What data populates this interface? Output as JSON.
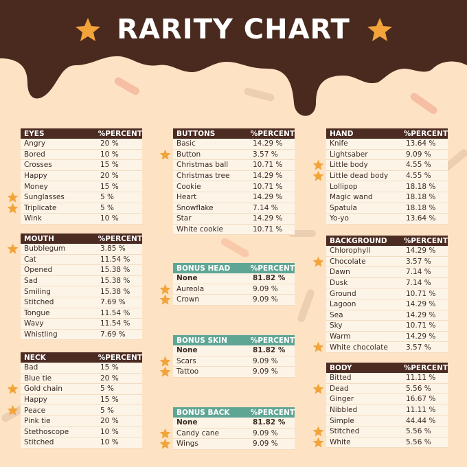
{
  "title": "RARITY CHART",
  "tables": [
    {
      "header": [
        "EYES",
        "%PERCENT"
      ],
      "rows": [
        {
          "name": "Angry",
          "percent": "20 %"
        },
        {
          "name": "Bored",
          "percent": "10 %"
        },
        {
          "name": "Crosses",
          "percent": "15 %"
        },
        {
          "name": "Happy",
          "percent": "20 %"
        },
        {
          "name": "Money",
          "percent": "15 %"
        },
        {
          "name": "Sunglasses",
          "percent": "5 %",
          "star": true
        },
        {
          "name": "Triplicate",
          "percent": "5 %",
          "star": true
        },
        {
          "name": "Wink",
          "percent": "10 %"
        }
      ]
    },
    {
      "header": [
        "MOUTH",
        "%PERCENT"
      ],
      "rows": [
        {
          "name": "Bubblegum",
          "percent": "3.85 %",
          "star": true
        },
        {
          "name": "Cat",
          "percent": "11.54 %"
        },
        {
          "name": "Opened",
          "percent": "15.38 %"
        },
        {
          "name": "Sad",
          "percent": "15.38 %"
        },
        {
          "name": "Smiling",
          "percent": "15.38 %"
        },
        {
          "name": "Stitched",
          "percent": "7.69 %"
        },
        {
          "name": "Tongue",
          "percent": "11.54 %"
        },
        {
          "name": "Wavy",
          "percent": "11.54 %"
        },
        {
          "name": "Whistling",
          "percent": "7.69 %"
        }
      ]
    },
    {
      "header": [
        "NECK",
        "%PERCENT"
      ],
      "rows": [
        {
          "name": "Bad",
          "percent": "15 %"
        },
        {
          "name": "Blue tie",
          "percent": "20 %"
        },
        {
          "name": "Gold chain",
          "percent": "5 %",
          "star": true
        },
        {
          "name": "Happy",
          "percent": "15 %"
        },
        {
          "name": "Peace",
          "percent": "5 %",
          "star": true
        },
        {
          "name": "Pink tie",
          "percent": "20 %"
        },
        {
          "name": "Stethoscope",
          "percent": "10 %"
        },
        {
          "name": "Stitched",
          "percent": "10 %"
        }
      ]
    },
    {
      "header": [
        "BUTTONS",
        "%PERCENT"
      ],
      "rows": [
        {
          "name": "Basic",
          "percent": "14.29 %"
        },
        {
          "name": "Button",
          "percent": "3.57 %",
          "star": true
        },
        {
          "name": "Christmas ball",
          "percent": "10.71 %"
        },
        {
          "name": "Christmas tree",
          "percent": "14.29 %"
        },
        {
          "name": "Cookie",
          "percent": "10.71 %"
        },
        {
          "name": "Heart",
          "percent": "14.29 %"
        },
        {
          "name": "Snowflake",
          "percent": "7.14 %"
        },
        {
          "name": "Star",
          "percent": "14.29 %"
        },
        {
          "name": "White cookie",
          "percent": "10.71 %"
        }
      ]
    },
    {
      "header": [
        "BONUS HEAD",
        "%PERCENT"
      ],
      "bonus": true,
      "rows": [
        {
          "name": "None",
          "percent": "81.82 %",
          "bold": true
        },
        {
          "name": "Aureola",
          "percent": "9.09 %",
          "star": true
        },
        {
          "name": "Crown",
          "percent": "9.09 %",
          "star": true
        }
      ]
    },
    {
      "header": [
        "BONUS SKIN",
        "%PERCENT"
      ],
      "bonus": true,
      "rows": [
        {
          "name": "None",
          "percent": "81.82 %",
          "bold": true
        },
        {
          "name": "Scars",
          "percent": "9.09 %",
          "star": true
        },
        {
          "name": "Tattoo",
          "percent": "9.09 %",
          "star": true
        }
      ]
    },
    {
      "header": [
        "BONUS BACK",
        "%PERCENT"
      ],
      "bonus": true,
      "rows": [
        {
          "name": "None",
          "percent": "81.82 %",
          "bold": true
        },
        {
          "name": "Candy cane",
          "percent": "9.09 %",
          "star": true
        },
        {
          "name": "Wings",
          "percent": "9.09 %",
          "star": true
        }
      ]
    },
    {
      "header": [
        "HAND",
        "%PERCENT"
      ],
      "rows": [
        {
          "name": "Knife",
          "percent": "13.64 %"
        },
        {
          "name": "Lightsaber",
          "percent": "9.09 %"
        },
        {
          "name": "Little body",
          "percent": "4.55 %",
          "star": true
        },
        {
          "name": "Little dead body",
          "percent": "4.55 %",
          "star": true
        },
        {
          "name": "Lollipop",
          "percent": "18.18 %"
        },
        {
          "name": "Magic wand",
          "percent": "18.18 %"
        },
        {
          "name": "Spatula",
          "percent": "18.18 %"
        },
        {
          "name": "Yo-yo",
          "percent": "13.64 %"
        }
      ]
    },
    {
      "header": [
        "BACKGROUND",
        "%PERCENT"
      ],
      "rows": [
        {
          "name": "Chlorophyll",
          "percent": "14.29 %"
        },
        {
          "name": "Chocolate",
          "percent": "3.57 %",
          "star": true
        },
        {
          "name": "Dawn",
          "percent": "7.14 %"
        },
        {
          "name": "Dusk",
          "percent": "7.14 %"
        },
        {
          "name": "Ground",
          "percent": "10.71 %"
        },
        {
          "name": "Lagoon",
          "percent": "14.29 %"
        },
        {
          "name": "Sea",
          "percent": "14.29 %"
        },
        {
          "name": "Sky",
          "percent": "10.71 %"
        },
        {
          "name": "Warm",
          "percent": "14.29 %"
        },
        {
          "name": "White chocolate",
          "percent": "3.57 %",
          "star": true
        }
      ]
    },
    {
      "header": [
        "BODY",
        "%PERCENT"
      ],
      "rows": [
        {
          "name": "Bitted",
          "percent": "11.11 %"
        },
        {
          "name": "Dead",
          "percent": "5.56 %",
          "star": true
        },
        {
          "name": "Ginger",
          "percent": "16.67 %"
        },
        {
          "name": "Nibbled",
          "percent": "11.11 %"
        },
        {
          "name": "Simple",
          "percent": "44.44 %"
        },
        {
          "name": "Stitched",
          "percent": "5.56 %",
          "star": true
        },
        {
          "name": "White",
          "percent": "5.56 %",
          "star": true
        }
      ]
    }
  ]
}
